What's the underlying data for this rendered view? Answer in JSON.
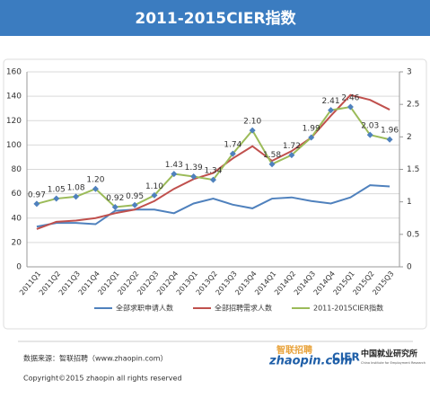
{
  "chart_data": {
    "type": "line",
    "title": "2011-2015CIER指数",
    "categories": [
      "2011Q1",
      "2011Q2",
      "2011Q3",
      "2011Q4",
      "2012Q1",
      "2012Q2",
      "2012Q3",
      "2012Q4",
      "2013Q1",
      "2013Q2",
      "2013Q3",
      "2013Q4",
      "2014Q1",
      "2014Q2",
      "2014Q3",
      "2014Q4",
      "2015Q1",
      "2015Q2",
      "2015Q3"
    ],
    "series": [
      {
        "name": "全部求职申请人数",
        "color": "#4f81bd",
        "values": [
          33,
          36,
          36,
          35,
          46,
          47,
          47,
          44,
          52,
          56,
          51,
          48,
          56,
          57,
          54,
          52,
          57,
          67,
          66
        ]
      },
      {
        "name": "全部招聘需求人数",
        "color": "#c0504d",
        "values": [
          31,
          37,
          38,
          40,
          44,
          47,
          54,
          64,
          72,
          77,
          89,
          99,
          87,
          95,
          106,
          124,
          141,
          137,
          129
        ]
      },
      {
        "name": "2011-2015CIER指数",
        "color": "#9bbb59",
        "marker_color": "#4f81bd",
        "axis": "y2",
        "values": [
          0.97,
          1.05,
          1.08,
          1.2,
          0.92,
          0.95,
          1.1,
          1.43,
          1.39,
          1.34,
          1.74,
          2.1,
          1.58,
          1.72,
          1.99,
          2.41,
          2.46,
          2.03,
          1.96
        ],
        "value_labels": [
          "0.97",
          "1.05",
          "1.08",
          "1.20",
          "0.92",
          "0.95",
          "1.10",
          "1.43",
          "1.39",
          "1.34",
          "1.74",
          "2.10",
          "1.58",
          "1.72",
          "1.99",
          "2.41",
          "2.46",
          "2.03",
          "1.96"
        ]
      }
    ],
    "ylim": [
      0,
      160
    ],
    "yticks": [
      0,
      20,
      40,
      60,
      80,
      100,
      120,
      140,
      160
    ],
    "y2lim": [
      0,
      3
    ],
    "y2ticks": [
      0,
      0.5,
      1,
      1.5,
      2,
      2.5,
      3
    ],
    "grid": true,
    "legend": "bottom"
  },
  "source": "数据来源：智联招聘（www.zhaopin.com）",
  "copyright": "Copyright©2015 zhaopin all rights reserved",
  "logos": {
    "zhaopin": "zhaopin.com",
    "zhaopin_cn": "智联招聘",
    "cier": "CIER",
    "cier_cn": "中国就业研究所",
    "cier_en": "China Institute for Employment Research"
  }
}
